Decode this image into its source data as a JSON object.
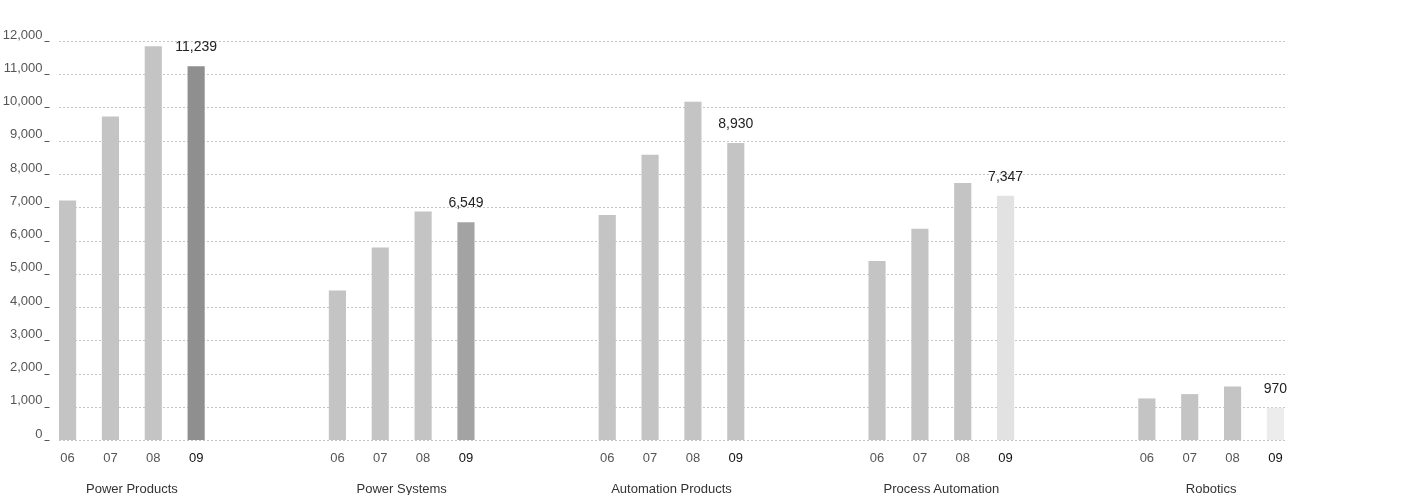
{
  "chart_data": {
    "type": "bar",
    "categories": [
      "Power Products",
      "Power Systems",
      "Automation Products",
      "Process Automation",
      "Robotics"
    ],
    "series": [
      {
        "name": "06",
        "color": "#c4c4c4",
        "values": [
          7200,
          4500,
          6770,
          5380,
          1250
        ]
      },
      {
        "name": "07",
        "color": "#c4c4c4",
        "values": [
          9730,
          5790,
          8580,
          6350,
          1380
        ]
      },
      {
        "name": "08",
        "color": "#c4c4c4",
        "values": [
          11840,
          6870,
          10170,
          7730,
          1610
        ]
      },
      {
        "name": "09",
        "colors": [
          "#8f8f8f",
          "#a3a3a3",
          "#c4c4c4",
          "#e2e2e2",
          "#ececec"
        ],
        "values": [
          11239,
          6549,
          8930,
          7347,
          970
        ],
        "value_labels": [
          "11,239",
          "6,549",
          "8,930",
          "7,347",
          "970"
        ]
      }
    ],
    "ylim": [
      0,
      12000
    ],
    "yticks": [
      0,
      {
        "value": 1000,
        "label": "1,000"
      },
      {
        "value": 2000,
        "label": "2,000"
      },
      {
        "value": 3000,
        "label": "3,000"
      },
      {
        "value": 4000,
        "label": "4,000"
      },
      {
        "value": 5000,
        "label": "5,000"
      },
      {
        "value": 6000,
        "label": "6,000"
      },
      {
        "value": 7000,
        "label": "7,000"
      },
      {
        "value": 8000,
        "label": "8,000"
      },
      {
        "value": 9000,
        "label": "9,000"
      },
      {
        "value": 10000,
        "label": "10,000"
      },
      {
        "value": 11000,
        "label": "11,000"
      },
      {
        "value": 12000,
        "label": "12,000"
      }
    ],
    "grid": "y"
  }
}
